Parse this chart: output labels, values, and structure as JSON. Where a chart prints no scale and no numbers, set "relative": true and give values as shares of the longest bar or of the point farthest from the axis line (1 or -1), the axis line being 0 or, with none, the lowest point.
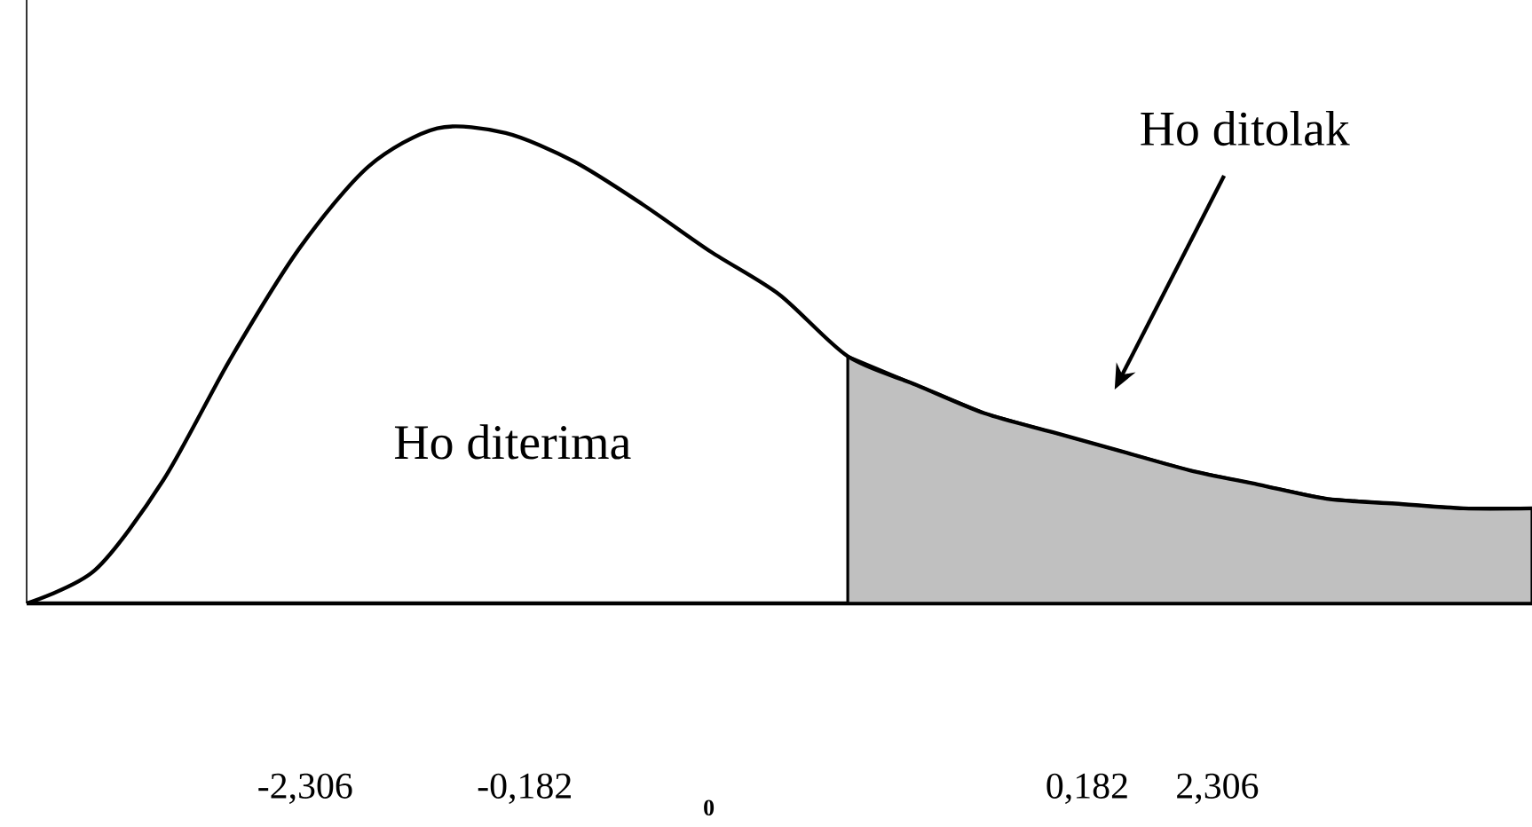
{
  "chart_data": {
    "type": "line",
    "relative": true,
    "marker": "none",
    "categories": [
      null,
      null,
      null,
      null,
      null,
      null,
      null,
      null,
      null,
      null,
      null,
      null,
      null,
      null,
      null,
      null,
      null,
      null,
      null,
      null,
      null,
      null,
      null
    ],
    "series": [
      {
        "color": "#000000",
        "values": [
          0,
          0.07,
          0.26,
          0.52,
          0.75,
          0.92,
          1.0,
          0.99,
          0.93,
          0.84,
          0.74,
          0.65,
          0.52,
          0.46,
          0.4,
          0.36,
          0.32,
          0.28,
          0.25,
          0.22,
          0.21,
          0.2,
          0.2
        ]
      },
      {
        "type": "area",
        "color": "#c0c0c0",
        "values": [
          null,
          null,
          null,
          null,
          null,
          null,
          null,
          null,
          null,
          null,
          null,
          null,
          0.52,
          0.46,
          0.4,
          0.36,
          0.32,
          0.28,
          0.25,
          0.22,
          0.21,
          0.2,
          0.2
        ]
      }
    ],
    "annotations": [
      "Ho diterima",
      "Ho ditolak",
      "-2,306",
      "-0,182",
      "0",
      "0,182",
      "2,306"
    ]
  }
}
